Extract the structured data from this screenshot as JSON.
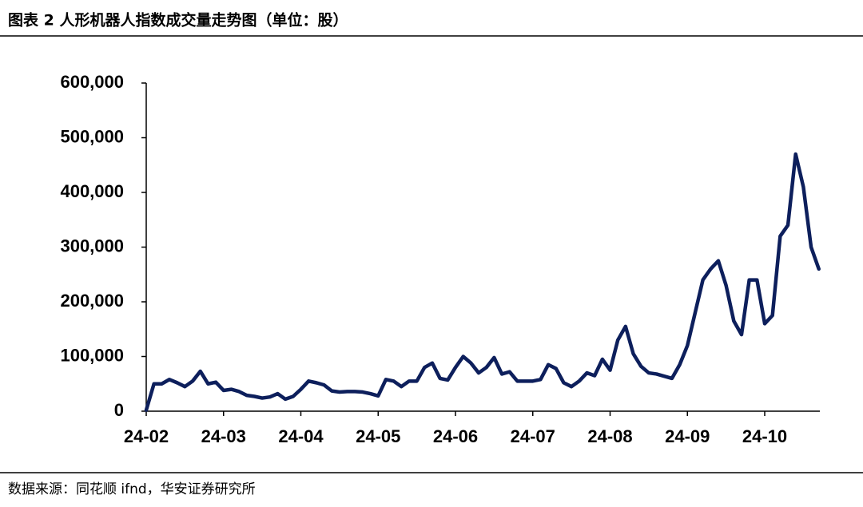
{
  "chart_data": {
    "type": "line",
    "title": "图表 2  人形机器人指数成交量走势图（单位：股）",
    "source": "数据来源：同花顺 ifnd，华安证券研究所",
    "categories": [
      "24-02",
      null,
      null,
      null,
      null,
      null,
      null,
      null,
      null,
      null,
      "24-03",
      null,
      null,
      null,
      null,
      null,
      null,
      null,
      null,
      null,
      "24-04",
      null,
      null,
      null,
      null,
      null,
      null,
      null,
      null,
      null,
      "24-05",
      null,
      null,
      null,
      null,
      null,
      null,
      null,
      null,
      null,
      "24-06",
      null,
      null,
      null,
      null,
      null,
      null,
      null,
      null,
      null,
      "24-07",
      null,
      null,
      null,
      null,
      null,
      null,
      null,
      null,
      null,
      "24-08",
      null,
      null,
      null,
      null,
      null,
      null,
      null,
      null,
      null,
      "24-09",
      null,
      null,
      null,
      null,
      null,
      null,
      null,
      null,
      null,
      "24-10",
      null,
      null,
      null,
      null,
      null,
      null,
      null
    ],
    "series": [
      {
        "name": "成交量",
        "color": "#0d1f5c",
        "values": [
          2000,
          50000,
          50000,
          58000,
          52000,
          45000,
          55000,
          73000,
          50000,
          53000,
          38000,
          40000,
          36000,
          29000,
          27000,
          24000,
          26000,
          32000,
          22000,
          27000,
          40000,
          55000,
          52000,
          48000,
          37000,
          35000,
          36000,
          36000,
          35000,
          32000,
          28000,
          58000,
          55000,
          45000,
          55000,
          55000,
          80000,
          88000,
          60000,
          57000,
          80000,
          100000,
          88000,
          70000,
          80000,
          98000,
          68000,
          72000,
          55000,
          55000,
          55000,
          58000,
          85000,
          78000,
          52000,
          45000,
          55000,
          70000,
          65000,
          95000,
          75000,
          130000,
          155000,
          105000,
          82000,
          70000,
          68000,
          64000,
          60000,
          85000,
          120000,
          180000,
          240000,
          260000,
          275000,
          230000,
          165000,
          140000,
          240000,
          240000,
          160000,
          175000,
          320000,
          340000,
          470000,
          410000,
          300000,
          260000
        ]
      }
    ],
    "ylim": [
      0,
      600000
    ],
    "yticks": [
      0,
      {
        "value": 100000,
        "label": "100,000"
      },
      {
        "value": 200000,
        "label": "200,000"
      },
      {
        "value": 300000,
        "label": "300,000"
      },
      {
        "value": 400000,
        "label": "400,000"
      },
      {
        "value": 500000,
        "label": "500,000"
      },
      {
        "value": 600000,
        "label": "600,000"
      }
    ],
    "grid": false
  }
}
